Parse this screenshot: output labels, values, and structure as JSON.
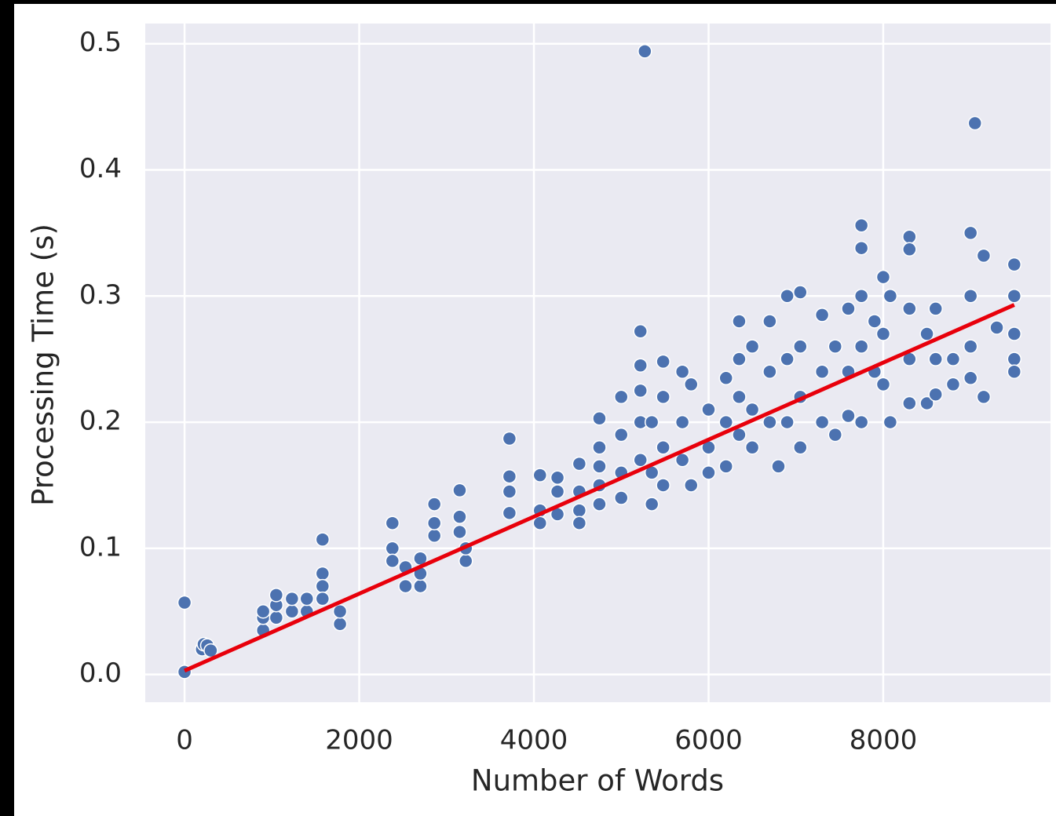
{
  "chart_data": {
    "type": "scatter",
    "xlabel": "Number of Words",
    "ylabel": "Processing Time (s)",
    "xlim": [
      -450,
      9915
    ],
    "ylim": [
      -0.022,
      0.516
    ],
    "xticks": [
      0,
      2000,
      4000,
      6000,
      8000
    ],
    "yticks": [
      {
        "value": 0,
        "label": "0.0"
      },
      0.1,
      0.2,
      0.3,
      0.4,
      0.5
    ],
    "grid": true,
    "series": [
      {
        "color": "#4c72b0",
        "x": [
          0,
          0,
          200,
          220,
          260,
          300,
          900,
          900,
          900,
          1050,
          1050,
          1050,
          1230,
          1230,
          1400,
          1400,
          1580,
          1580,
          1580,
          1580,
          1780,
          1780,
          2380,
          2380,
          2380,
          2530,
          2530,
          2700,
          2700,
          2700,
          2860,
          2860,
          2860,
          3150,
          3150,
          3150,
          3220,
          3220,
          3720,
          3720,
          3720,
          3720,
          4070,
          4070,
          4070,
          4270,
          4270,
          4270,
          4520,
          4520,
          4520,
          4520,
          4750,
          4750,
          4750,
          4750,
          4750,
          5000,
          5000,
          5000,
          5000,
          5220,
          5220,
          5220,
          5220,
          5220,
          5270,
          5350,
          5350,
          5350,
          5480,
          5480,
          5480,
          5480,
          5700,
          5700,
          5700,
          5800,
          5800,
          6000,
          6000,
          6000,
          6200,
          6200,
          6200,
          6350,
          6350,
          6350,
          6350,
          6500,
          6500,
          6500,
          6700,
          6700,
          6700,
          6800,
          6900,
          6900,
          6900,
          7050,
          7050,
          7050,
          7050,
          7300,
          7300,
          7300,
          7450,
          7450,
          7600,
          7600,
          7600,
          7750,
          7750,
          7750,
          7750,
          7750,
          7900,
          7900,
          8000,
          8000,
          8000,
          8080,
          8080,
          8300,
          8300,
          8300,
          8300,
          8300,
          8500,
          8500,
          8600,
          8600,
          8600,
          8800,
          8800,
          9000,
          9000,
          9000,
          9000,
          9050,
          9150,
          9150,
          9300,
          9500,
          9500,
          9500,
          9500,
          9500
        ],
        "values": [
          0.057,
          0.002,
          0.02,
          0.024,
          0.023,
          0.019,
          0.035,
          0.045,
          0.05,
          0.045,
          0.055,
          0.063,
          0.05,
          0.06,
          0.05,
          0.06,
          0.107,
          0.08,
          0.07,
          0.06,
          0.04,
          0.05,
          0.12,
          0.1,
          0.09,
          0.07,
          0.085,
          0.07,
          0.08,
          0.092,
          0.11,
          0.12,
          0.135,
          0.146,
          0.125,
          0.113,
          0.09,
          0.1,
          0.187,
          0.157,
          0.145,
          0.128,
          0.158,
          0.13,
          0.12,
          0.156,
          0.145,
          0.127,
          0.167,
          0.145,
          0.13,
          0.12,
          0.203,
          0.18,
          0.165,
          0.15,
          0.135,
          0.22,
          0.19,
          0.16,
          0.14,
          0.272,
          0.245,
          0.225,
          0.2,
          0.17,
          0.494,
          0.2,
          0.16,
          0.135,
          0.248,
          0.22,
          0.18,
          0.15,
          0.24,
          0.2,
          0.17,
          0.23,
          0.15,
          0.21,
          0.18,
          0.16,
          0.235,
          0.2,
          0.165,
          0.28,
          0.25,
          0.22,
          0.19,
          0.26,
          0.21,
          0.18,
          0.28,
          0.24,
          0.2,
          0.165,
          0.3,
          0.25,
          0.2,
          0.303,
          0.26,
          0.22,
          0.18,
          0.285,
          0.24,
          0.2,
          0.26,
          0.19,
          0.29,
          0.24,
          0.205,
          0.356,
          0.338,
          0.3,
          0.26,
          0.2,
          0.28,
          0.24,
          0.315,
          0.27,
          0.23,
          0.3,
          0.2,
          0.347,
          0.337,
          0.29,
          0.25,
          0.215,
          0.27,
          0.215,
          0.29,
          0.25,
          0.222,
          0.25,
          0.23,
          0.35,
          0.3,
          0.26,
          0.235,
          0.437,
          0.332,
          0.22,
          0.275,
          0.325,
          0.3,
          0.27,
          0.25,
          0.24
        ]
      }
    ],
    "fit": {
      "color": "#e8000b",
      "x": [
        0,
        9500
      ],
      "values": [
        0.003,
        0.293
      ]
    }
  }
}
